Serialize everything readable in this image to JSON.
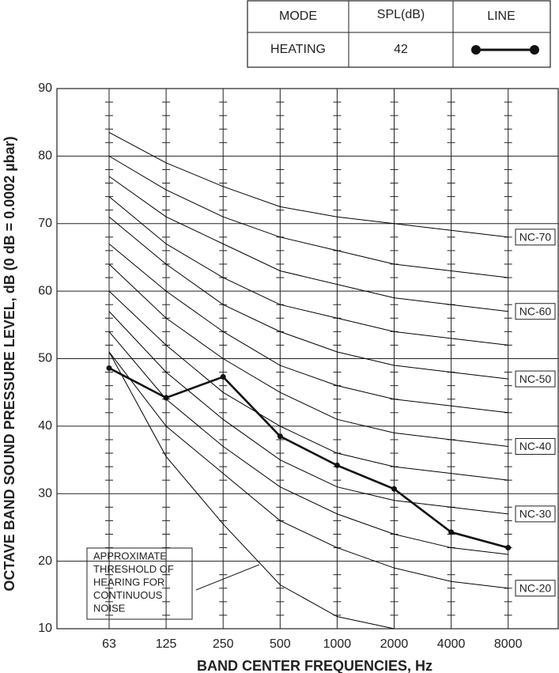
{
  "chart_data": {
    "type": "line",
    "x_label": "BAND CENTER FREQUENCIES, Hz",
    "y_label": "OCTAVE BAND SOUND PRESSURE LEVEL, dB (0 dB = 0.0002 µbar)",
    "categories": [
      "63",
      "125",
      "250",
      "500",
      "1000",
      "2000",
      "4000",
      "8000"
    ],
    "ylim": [
      10,
      90
    ],
    "yticks": [
      10,
      20,
      30,
      40,
      50,
      60,
      70,
      80,
      90
    ],
    "grid": true,
    "legend_headers": [
      "MODE",
      "SPL(dB)",
      "LINE"
    ],
    "annotation": [
      "APPROXIMATE",
      "THRESHOLD OF",
      "HEARING FOR",
      "CONTINUOUS",
      "NOISE"
    ],
    "series": [
      {
        "name": "NC-20",
        "color": "#000000",
        "values": [
          51,
          40,
          33,
          26,
          22,
          19,
          17,
          16
        ]
      },
      {
        "color": "#000000",
        "values": [
          54,
          44,
          37,
          31,
          27,
          24,
          22,
          21
        ]
      },
      {
        "name": "NC-30",
        "color": "#000000",
        "values": [
          57,
          48,
          41,
          35,
          31,
          29,
          28,
          27
        ]
      },
      {
        "color": "#000000",
        "values": [
          60,
          52,
          45,
          40,
          36,
          34,
          33,
          32
        ]
      },
      {
        "name": "NC-40",
        "color": "#000000",
        "values": [
          64,
          56,
          50,
          45,
          41,
          39,
          38,
          37
        ]
      },
      {
        "color": "#000000",
        "values": [
          67,
          60,
          54,
          49,
          46,
          44,
          43,
          42
        ]
      },
      {
        "name": "NC-50",
        "color": "#000000",
        "values": [
          71,
          64,
          58,
          54,
          51,
          49,
          48,
          47
        ]
      },
      {
        "color": "#000000",
        "values": [
          74,
          67,
          62,
          58,
          56,
          54,
          53,
          52
        ]
      },
      {
        "name": "NC-60",
        "color": "#000000",
        "values": [
          77,
          71,
          67,
          63,
          61,
          59,
          58,
          57
        ]
      },
      {
        "color": "#000000",
        "values": [
          80,
          75,
          71,
          68,
          66,
          64,
          63,
          62
        ]
      },
      {
        "name": "NC-70",
        "color": "#000000",
        "values": [
          83.5,
          79,
          75.5,
          72.5,
          71,
          70,
          69,
          68
        ]
      },
      {
        "color": "#000000",
        "values": [
          51,
          35.5,
          25.5,
          16.5,
          11.8,
          10,
          null,
          null
        ]
      },
      {
        "name": "HEATING",
        "spl": 42,
        "color": "#111111",
        "markers": true,
        "values": [
          48.6,
          44.2,
          47.3,
          38.5,
          34.2,
          30.7,
          24.3,
          22
        ]
      }
    ]
  }
}
